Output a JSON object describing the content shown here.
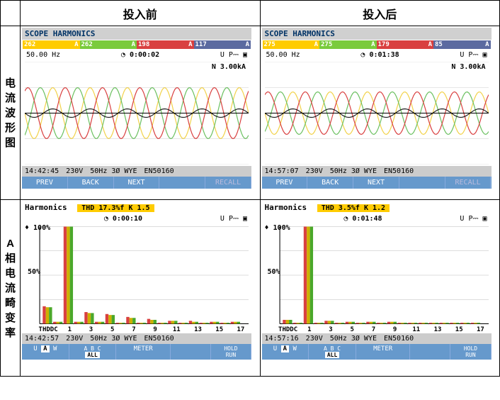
{
  "headers": {
    "blank": "",
    "before": "投入前",
    "after": "投入后"
  },
  "rowLabels": {
    "wave": "电\n流\n波\n形\n图",
    "harm": "A\n相\n电\n流\n畸\n变\n率"
  },
  "scopeBefore": {
    "title": "SCOPE HARMONICS",
    "phases": [
      {
        "bg": "#ffcc00",
        "v": "262",
        "u": "A"
      },
      {
        "bg": "#7acb3c",
        "v": "262",
        "u": "A"
      },
      {
        "bg": "#d94040",
        "v": "198",
        "u": "A"
      },
      {
        "bg": "#5b6aa0",
        "v": "117",
        "u": "A"
      }
    ],
    "freq": "50.00 Hz",
    "time": "0:00:02",
    "ubat": "U P⎓ ▣",
    "nLabel": "N 3.00kA",
    "bottom": {
      "t": "14:42:45",
      "v": "230V",
      "h": "50Hz 3Ø WYE",
      "s": "EN50160"
    },
    "buttons": [
      "PREV",
      "BACK",
      "NEXT",
      "",
      "RECALL"
    ],
    "wave_amp": 36,
    "wave_colors": [
      "#f2d24a",
      "#6bc060",
      "#d94040",
      "#222222"
    ],
    "wave_periods": 6
  },
  "scopeAfter": {
    "title": "SCOPE HARMONICS",
    "phases": [
      {
        "bg": "#ffcc00",
        "v": "275",
        "u": "A"
      },
      {
        "bg": "#7acb3c",
        "v": "275",
        "u": "A"
      },
      {
        "bg": "#d94040",
        "v": "179",
        "u": "A"
      },
      {
        "bg": "#5b6aa0",
        "v": "85",
        "u": "A"
      }
    ],
    "freq": "50.00 Hz",
    "time": "0:01:38",
    "ubat": "U P⎓ ▣",
    "nLabel": "N 3.00kA",
    "bottom": {
      "t": "14:57:07",
      "v": "230V",
      "h": "50Hz 3Ø WYE",
      "s": "EN50160"
    },
    "buttons": [
      "PREV",
      "BACK",
      "NEXT",
      "",
      "RECALL"
    ],
    "wave_amp": 30,
    "wave_colors": [
      "#f2d24a",
      "#6bc060",
      "#d94040",
      "#222222"
    ],
    "wave_periods": 6
  },
  "harmBefore": {
    "title": "Harmonics",
    "thd": "THD 17.3%f K   1.5",
    "time": "0:00:10",
    "ubat": "U P⎓ ▣",
    "ylabels": [
      "100%",
      "50%"
    ],
    "xlabels": [
      "THDDC",
      "1",
      "3",
      "5",
      "7",
      "9",
      "11",
      "13",
      "15",
      "17"
    ],
    "bars": {
      "categories": [
        "THD",
        "DC",
        "1",
        "2",
        "3",
        "4",
        "5",
        "6",
        "7",
        "8",
        "9",
        "10",
        "11",
        "12",
        "13",
        "14",
        "15",
        "16",
        "17"
      ],
      "series": [
        {
          "color": "#d94040",
          "values": [
            18,
            2,
            100,
            2,
            12,
            2,
            10,
            1,
            7,
            1,
            5,
            1,
            3,
            1,
            3,
            1,
            2,
            1,
            2
          ]
        },
        {
          "color": "#ccb000",
          "values": [
            17,
            2,
            100,
            2,
            11,
            2,
            9,
            1,
            6,
            1,
            4,
            1,
            3,
            1,
            2,
            1,
            2,
            1,
            2
          ]
        },
        {
          "color": "#4aa82a",
          "values": [
            17,
            2,
            100,
            2,
            11,
            2,
            9,
            1,
            6,
            1,
            4,
            1,
            3,
            1,
            2,
            1,
            2,
            1,
            2
          ]
        }
      ]
    },
    "bottom": {
      "t": "14:42:57",
      "v": "230V",
      "h": "50Hz 3Ø WYE",
      "s": "EN50160"
    },
    "bbtns": {
      "uaw": "U A W",
      "abc": "A B C",
      "all": "ALL",
      "meter": "METER",
      "hold": "HOLD\nRUN"
    }
  },
  "harmAfter": {
    "title": "Harmonics",
    "thd": "THD  3.5%f K   1.2",
    "time": "0:01:48",
    "ubat": "U P⎓ ▣",
    "ylabels": [
      "100%",
      "50%"
    ],
    "xlabels": [
      "THDDC",
      "1",
      "3",
      "5",
      "7",
      "9",
      "11",
      "13",
      "15",
      "17"
    ],
    "bars": {
      "categories": [
        "THD",
        "DC",
        "1",
        "2",
        "3",
        "4",
        "5",
        "6",
        "7",
        "8",
        "9",
        "10",
        "11",
        "12",
        "13",
        "14",
        "15",
        "16",
        "17"
      ],
      "series": [
        {
          "color": "#d94040",
          "values": [
            4,
            1,
            100,
            1,
            3,
            1,
            2,
            1,
            2,
            1,
            2,
            1,
            1,
            1,
            1,
            1,
            1,
            1,
            1
          ]
        },
        {
          "color": "#ccb000",
          "values": [
            4,
            1,
            100,
            1,
            3,
            1,
            2,
            1,
            2,
            1,
            2,
            1,
            1,
            1,
            1,
            1,
            1,
            1,
            1
          ]
        },
        {
          "color": "#4aa82a",
          "values": [
            4,
            1,
            100,
            1,
            3,
            1,
            2,
            1,
            2,
            1,
            2,
            1,
            1,
            1,
            1,
            1,
            1,
            1,
            1
          ]
        }
      ]
    },
    "bottom": {
      "t": "14:57:16",
      "v": "230V",
      "h": "50Hz 3Ø WYE",
      "s": "EN50160"
    },
    "bbtns": {
      "uaw": "U A W",
      "abc": "A B C",
      "all": "ALL",
      "meter": "METER",
      "hold": "HOLD\nRUN"
    }
  }
}
